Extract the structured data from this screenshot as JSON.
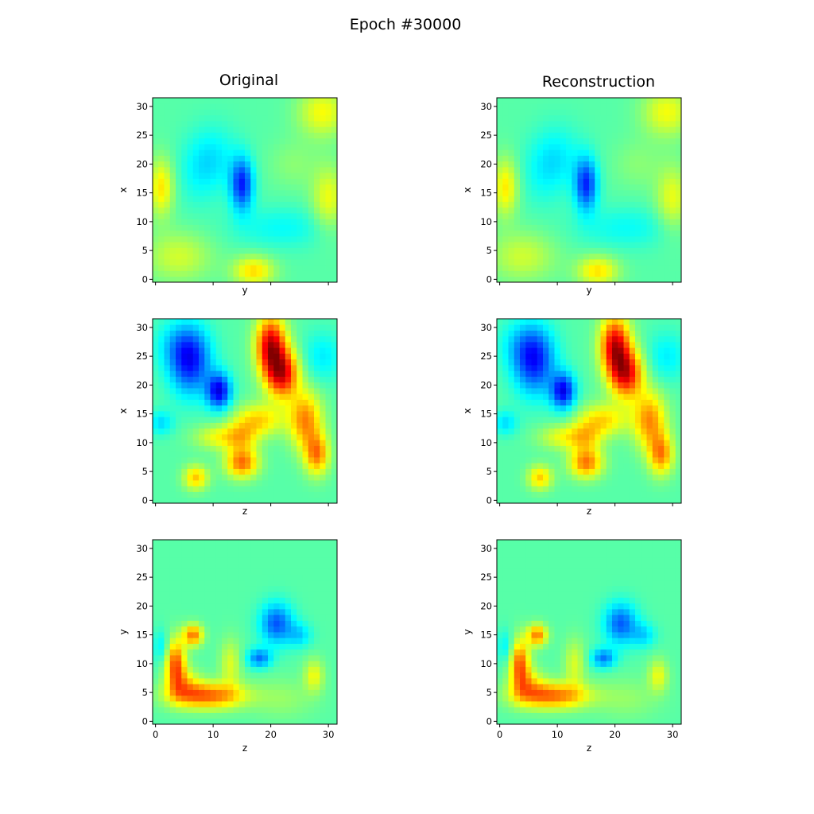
{
  "figure": {
    "title": "Epoch #30000"
  },
  "chart_data": {
    "type": "heatmap",
    "title": "Epoch #30000",
    "colormap": "jet",
    "grid": false,
    "grid_size": [
      32,
      32
    ],
    "columns": [
      "Original",
      "Reconstruction"
    ],
    "rows": [
      {
        "xlabel": "y",
        "ylabel": "x",
        "xticks_labeled": false
      },
      {
        "xlabel": "z",
        "ylabel": "x",
        "xticks_labeled": false
      },
      {
        "xlabel": "z",
        "ylabel": "y",
        "xticks_labeled": true
      }
    ],
    "xticks": [
      0,
      10,
      20,
      30
    ],
    "yticks": [
      0,
      5,
      10,
      15,
      20,
      25,
      30
    ],
    "xlim": [
      -0.5,
      31.5
    ],
    "ylim": [
      -0.5,
      31.5
    ],
    "value_range": [
      0,
      1
    ],
    "baseline": 0.46,
    "fields": [
      [
        {
          "x": 15.0,
          "y": 16.5,
          "sx": 1.4,
          "sy": 3.2,
          "a": -0.3
        },
        {
          "x": 10.0,
          "y": 21.0,
          "sx": 3.0,
          "sy": 4.0,
          "a": -0.1
        },
        {
          "x": 22.0,
          "y": 9.0,
          "sx": 6.0,
          "sy": 2.5,
          "a": -0.08
        },
        {
          "x": 7.0,
          "y": 18.0,
          "sx": 2.5,
          "sy": 4.0,
          "a": -0.05
        },
        {
          "x": 1.0,
          "y": 16.0,
          "sx": 1.5,
          "sy": 3.5,
          "a": 0.19
        },
        {
          "x": 17.0,
          "y": 1.5,
          "sx": 2.5,
          "sy": 1.8,
          "a": 0.2
        },
        {
          "x": 4.0,
          "y": 4.0,
          "sx": 4.0,
          "sy": 3.0,
          "a": 0.12
        },
        {
          "x": 30.0,
          "y": 14.0,
          "sx": 2.0,
          "sy": 4.0,
          "a": 0.15
        },
        {
          "x": 29.0,
          "y": 29.0,
          "sx": 3.0,
          "sy": 3.0,
          "a": 0.16
        },
        {
          "x": 24.0,
          "y": 20.0,
          "sx": 3.0,
          "sy": 3.0,
          "a": 0.05
        }
      ],
      [
        {
          "x": 6.0,
          "y": 24.0,
          "sx": 2.5,
          "sy": 4.0,
          "a": -0.3
        },
        {
          "x": 11.0,
          "y": 19.0,
          "sx": 1.5,
          "sy": 2.2,
          "a": -0.35
        },
        {
          "x": 4.0,
          "y": 27.0,
          "sx": 3.0,
          "sy": 3.0,
          "a": -0.1
        },
        {
          "x": 1.0,
          "y": 13.5,
          "sx": 1.5,
          "sy": 1.5,
          "a": -0.12
        },
        {
          "x": 20.0,
          "y": 27.0,
          "sx": 1.8,
          "sy": 3.5,
          "a": 0.45
        },
        {
          "x": 22.0,
          "y": 22.0,
          "sx": 2.0,
          "sy": 3.0,
          "a": 0.42
        },
        {
          "x": 26.0,
          "y": 14.0,
          "sx": 2.0,
          "sy": 3.5,
          "a": 0.28
        },
        {
          "x": 28.0,
          "y": 8.0,
          "sx": 1.5,
          "sy": 2.5,
          "a": 0.28
        },
        {
          "x": 15.0,
          "y": 6.5,
          "sx": 2.0,
          "sy": 1.8,
          "a": 0.3
        },
        {
          "x": 7.0,
          "y": 4.0,
          "sx": 1.5,
          "sy": 1.5,
          "a": 0.22
        },
        {
          "x": 11.0,
          "y": 11.0,
          "sx": 3.0,
          "sy": 1.5,
          "a": 0.15
        },
        {
          "x": 18.0,
          "y": 14.0,
          "sx": 3.0,
          "sy": 2.0,
          "a": 0.2
        },
        {
          "x": 15.0,
          "y": 11.0,
          "sx": 2.0,
          "sy": 2.0,
          "a": 0.15
        },
        {
          "x": 29.0,
          "y": 25.0,
          "sx": 2.5,
          "sy": 3.0,
          "a": -0.1
        }
      ],
      [
        {
          "x": 21.0,
          "y": 17.0,
          "sx": 2.0,
          "sy": 2.5,
          "a": -0.25
        },
        {
          "x": 18.0,
          "y": 11.0,
          "sx": 1.5,
          "sy": 1.2,
          "a": -0.22
        },
        {
          "x": 25.0,
          "y": 15.0,
          "sx": 1.5,
          "sy": 1.5,
          "a": -0.12
        },
        {
          "x": 1.0,
          "y": 13.0,
          "sx": 1.0,
          "sy": 2.0,
          "a": -0.1
        },
        {
          "x": 9.0,
          "y": 4.5,
          "sx": 4.5,
          "sy": 1.6,
          "a": 0.32
        },
        {
          "x": 3.5,
          "y": 10.0,
          "sx": 1.2,
          "sy": 3.0,
          "a": 0.33
        },
        {
          "x": 6.5,
          "y": 15.0,
          "sx": 1.2,
          "sy": 1.3,
          "a": 0.3
        },
        {
          "x": 5.0,
          "y": 6.5,
          "sx": 2.0,
          "sy": 2.0,
          "a": 0.15
        },
        {
          "x": 13.0,
          "y": 10.0,
          "sx": 1.3,
          "sy": 3.0,
          "a": 0.13
        },
        {
          "x": 27.5,
          "y": 8.0,
          "sx": 1.2,
          "sy": 2.0,
          "a": 0.15
        },
        {
          "x": 22.0,
          "y": 4.0,
          "sx": 4.0,
          "sy": 2.5,
          "a": 0.06
        }
      ]
    ]
  }
}
